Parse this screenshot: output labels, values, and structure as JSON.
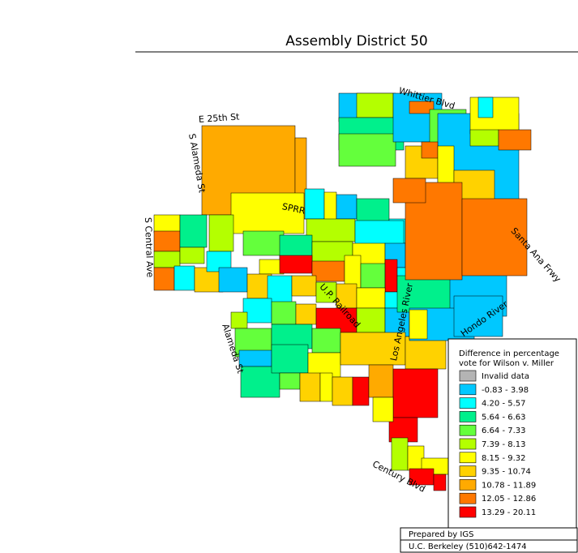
{
  "title": "Assembly District 50",
  "streets": [
    "E 25th St",
    "S Alameda St",
    "S Central Ave",
    "Whittier Blvd",
    "Santa Ana Frwy",
    "Hondo River",
    "Los Angeles River",
    "U.P. Railroad",
    "SPRR",
    "Alameda St",
    "Century Blvd"
  ],
  "legend": {
    "title": [
      "Difference in percentage",
      "vote for Wilson v. Miller"
    ],
    "items": [
      {
        "label": "Invalid data",
        "color": "#b4b4b4"
      },
      {
        "label": "-0.83 -  3.98",
        "color": "#00c8ff"
      },
      {
        "label": "4.20 -  5.57",
        "color": "#00ffff"
      },
      {
        "label": "5.64 -  6.63",
        "color": "#00f08c"
      },
      {
        "label": "6.64 -  7.33",
        "color": "#64ff3c"
      },
      {
        "label": "7.39 -  8.13",
        "color": "#b4ff00"
      },
      {
        "label": "8.15 -  9.32",
        "color": "#ffff00"
      },
      {
        "label": "9.35 - 10.74",
        "color": "#ffd200"
      },
      {
        "label": "10.78 - 11.89",
        "color": "#ffaa00"
      },
      {
        "label": "12.05 - 12.86",
        "color": "#ff7800"
      },
      {
        "label": "13.29 - 20.11",
        "color": "#ff0000"
      }
    ]
  },
  "footer": [
    "Prepared by IGS",
    "U.C. Berkeley (510)642-1474"
  ]
}
